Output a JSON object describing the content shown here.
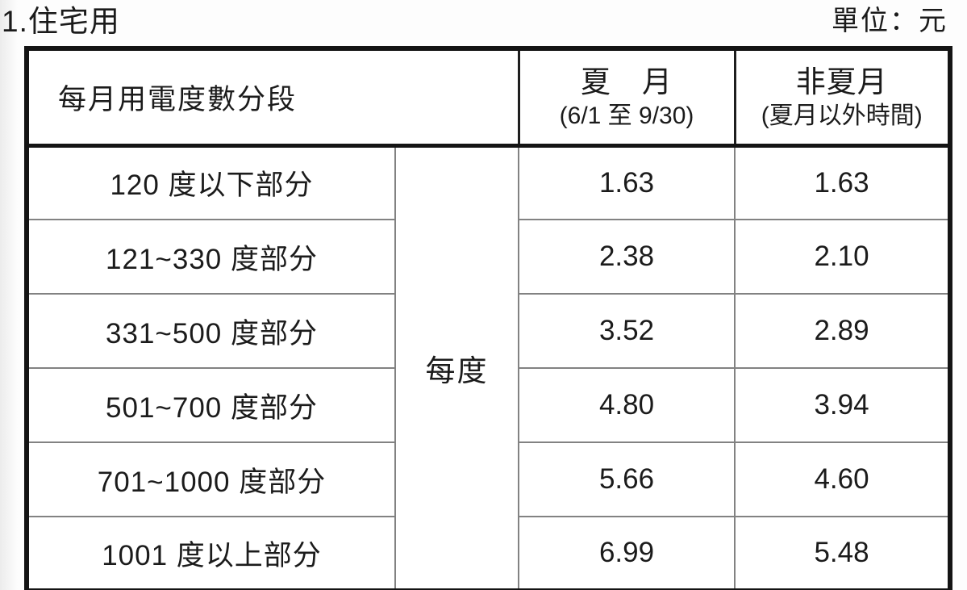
{
  "page": {
    "title": "1.住宅用",
    "unit_label": "單位：元"
  },
  "table": {
    "header": {
      "tier_label": "每月用電度數分段",
      "summer_title": "夏　月",
      "summer_sub": "(6/1 至 9/30)",
      "non_summer_title": "非夏月",
      "non_summer_sub": "(夏月以外時間)"
    },
    "unit_cell": "每度",
    "rows": [
      {
        "tier": "120 度以下部分",
        "summer": "1.63",
        "non_summer": "1.63"
      },
      {
        "tier": "121~330 度部分",
        "summer": "2.38",
        "non_summer": "2.10"
      },
      {
        "tier": "331~500 度部分",
        "summer": "3.52",
        "non_summer": "2.89"
      },
      {
        "tier": "501~700 度部分",
        "summer": "4.80",
        "non_summer": "3.94"
      },
      {
        "tier": "701~1000 度部分",
        "summer": "5.66",
        "non_summer": "4.60"
      },
      {
        "tier": "1001 度以上部分",
        "summer": "6.99",
        "non_summer": "5.48"
      }
    ]
  }
}
